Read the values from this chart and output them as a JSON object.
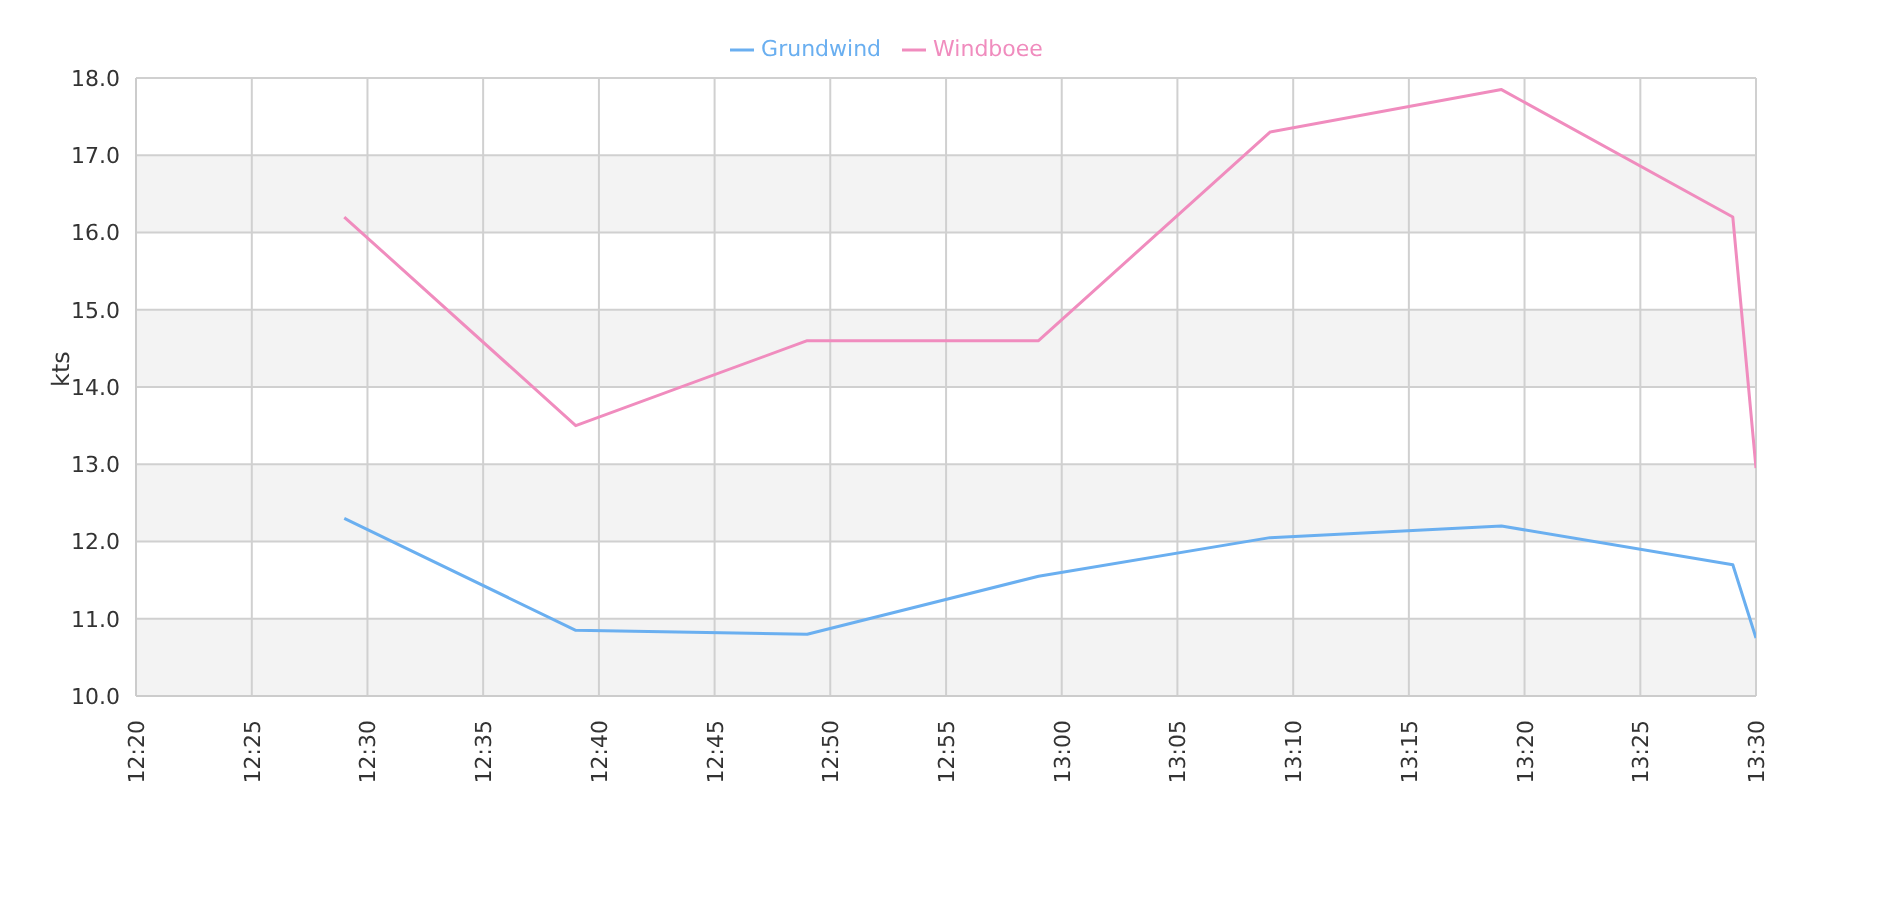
{
  "chart_data": {
    "type": "line",
    "ylabel": "kts",
    "legend": "top",
    "grid": true,
    "marker": "none",
    "line_style": "solid",
    "xlim": [
      12.3333,
      13.5
    ],
    "xticks": [
      {
        "value": 12.3333,
        "label": "12:20"
      },
      {
        "value": 12.4167,
        "label": "12:25"
      },
      {
        "value": 12.5,
        "label": "12:30"
      },
      {
        "value": 12.5833,
        "label": "12:35"
      },
      {
        "value": 12.6667,
        "label": "12:40"
      },
      {
        "value": 12.75,
        "label": "12:45"
      },
      {
        "value": 12.8333,
        "label": "12:50"
      },
      {
        "value": 12.9167,
        "label": "12:55"
      },
      {
        "value": 13,
        "label": "13:00"
      },
      {
        "value": 13.0833,
        "label": "13:05"
      },
      {
        "value": 13.1667,
        "label": "13:10"
      },
      {
        "value": 13.25,
        "label": "13:15"
      },
      {
        "value": 13.3333,
        "label": "13:20"
      },
      {
        "value": 13.4167,
        "label": "13:25"
      },
      {
        "value": 13.5,
        "label": "13:30"
      }
    ],
    "ylim": [
      10,
      18
    ],
    "yticks": [
      {
        "value": 10,
        "label": "10.0"
      },
      {
        "value": 11,
        "label": "11.0"
      },
      {
        "value": 12,
        "label": "12.0"
      },
      {
        "value": 13,
        "label": "13.0"
      },
      {
        "value": 14,
        "label": "14.0"
      },
      {
        "value": 15,
        "label": "15.0"
      },
      {
        "value": 16,
        "label": "16.0"
      },
      {
        "value": 17,
        "label": "17.0"
      },
      {
        "value": 18,
        "label": "18.0"
      }
    ],
    "x": [
      12.4833,
      12.65,
      12.8167,
      12.9833,
      13.15,
      13.3167,
      13.4833,
      13.5
    ],
    "series": [
      {
        "name": "Grundwind",
        "color": "#6aaff0",
        "values": [
          12.3,
          10.85,
          10.8,
          11.55,
          12.05,
          12.2,
          11.7,
          10.75
        ]
      },
      {
        "name": "Windboee",
        "color": "#f08cbe",
        "values": [
          16.2,
          13.5,
          14.6,
          14.6,
          17.3,
          17.85,
          16.2,
          12.95
        ]
      }
    ]
  }
}
